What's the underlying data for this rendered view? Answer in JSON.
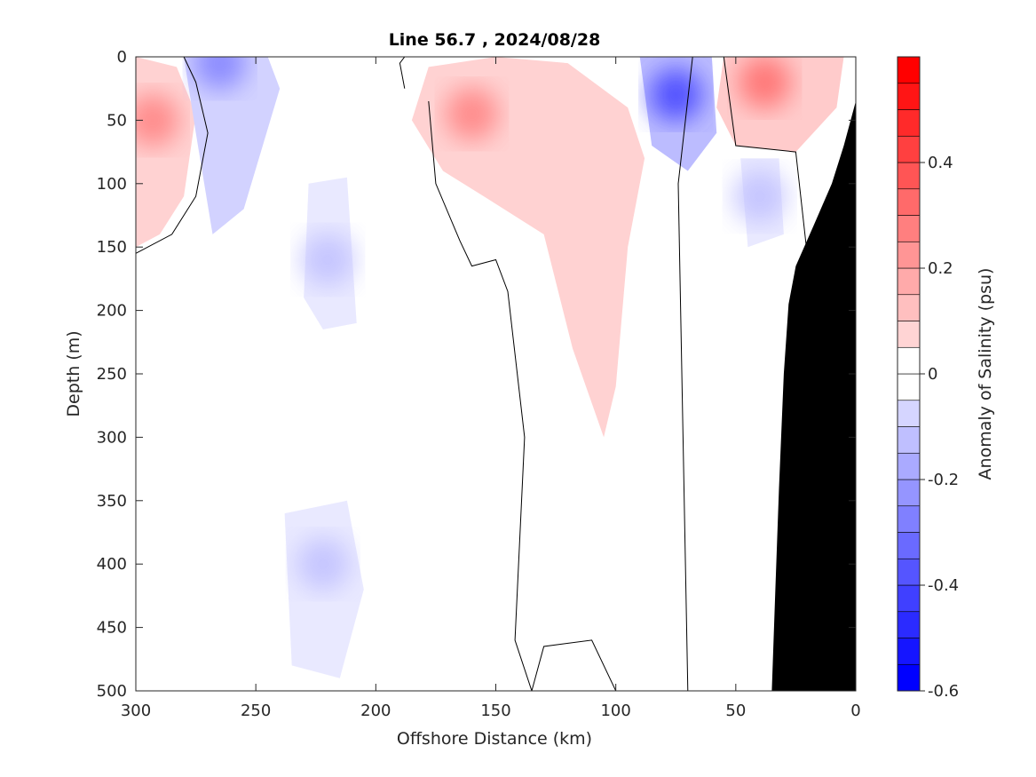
{
  "chart_data": {
    "type": "heatmap",
    "title": "Line 56.7 , 2024/08/28",
    "xlabel": "Offshore Distance (km)",
    "ylabel": "Depth (m)",
    "colorbar_label": "Anomaly of Salinity (psu)",
    "x_axis": {
      "range": [
        300,
        0
      ],
      "reversed": true,
      "ticks": [
        300,
        250,
        200,
        150,
        100,
        50,
        0
      ]
    },
    "y_axis": {
      "range": [
        0,
        500
      ],
      "reversed": true,
      "ticks": [
        0,
        50,
        100,
        150,
        200,
        250,
        300,
        350,
        400,
        450,
        500
      ]
    },
    "colorbar": {
      "range": [
        -0.6,
        0.6
      ],
      "step": 0.05,
      "ticks": [
        -0.6,
        -0.4,
        -0.2,
        0,
        0.2,
        0.4
      ],
      "tick_labels": [
        "-0.6",
        "-0.4",
        "-0.2",
        "0",
        "0.2",
        "0.4"
      ],
      "negative_color": "#0000ff",
      "positive_color": "#ff0000",
      "neutral_color": "#ffffff"
    },
    "bathymetry": {
      "color": "#000000",
      "profile": [
        [
          0,
          35
        ],
        [
          5,
          70
        ],
        [
          10,
          100
        ],
        [
          18,
          135
        ],
        [
          25,
          165
        ],
        [
          28,
          195
        ],
        [
          30,
          250
        ],
        [
          32,
          340
        ],
        [
          33.5,
          420
        ],
        [
          35,
          500
        ],
        [
          0,
          500
        ]
      ]
    },
    "grid": false,
    "regions": [
      {
        "name": "salty-core-offshore-west",
        "value": 0.3,
        "center": [
          293,
          50
        ],
        "halo": [
          [
            300,
            0
          ],
          [
            283,
            8
          ],
          [
            275,
            45
          ],
          [
            280,
            110
          ],
          [
            290,
            140
          ],
          [
            300,
            150
          ]
        ]
      },
      {
        "name": "salty-core-150km",
        "value": 0.3,
        "center": [
          160,
          45
        ],
        "halo": [
          [
            178,
            8
          ],
          [
            150,
            0
          ],
          [
            120,
            5
          ],
          [
            95,
            40
          ],
          [
            88,
            80
          ],
          [
            95,
            150
          ],
          [
            100,
            260
          ],
          [
            105,
            300
          ],
          [
            118,
            230
          ],
          [
            130,
            140
          ],
          [
            155,
            110
          ],
          [
            172,
            90
          ],
          [
            185,
            50
          ]
        ]
      },
      {
        "name": "salty-core-nearshore",
        "value": 0.35,
        "center": [
          38,
          20
        ],
        "halo": [
          [
            55,
            0
          ],
          [
            5,
            0
          ],
          [
            8,
            40
          ],
          [
            25,
            75
          ],
          [
            50,
            70
          ],
          [
            58,
            40
          ]
        ]
      },
      {
        "name": "fresh-surface-265km",
        "value": -0.3,
        "center": [
          265,
          5
        ],
        "halo": [
          [
            280,
            0
          ],
          [
            245,
            0
          ],
          [
            240,
            25
          ],
          [
            255,
            120
          ],
          [
            268,
            140
          ],
          [
            275,
            60
          ]
        ]
      },
      {
        "name": "fresh-core-75km",
        "value": -0.45,
        "center": [
          75,
          30
        ],
        "halo": [
          [
            90,
            0
          ],
          [
            60,
            0
          ],
          [
            58,
            60
          ],
          [
            70,
            90
          ],
          [
            85,
            70
          ]
        ]
      },
      {
        "name": "fresh-pocket-220km",
        "value": -0.15,
        "center": [
          220,
          160
        ],
        "halo": [
          [
            228,
            100
          ],
          [
            212,
            95
          ],
          [
            208,
            210
          ],
          [
            222,
            215
          ],
          [
            230,
            190
          ]
        ]
      },
      {
        "name": "fresh-deep-225km",
        "value": -0.15,
        "center": [
          222,
          400
        ],
        "halo": [
          [
            238,
            360
          ],
          [
            212,
            350
          ],
          [
            205,
            420
          ],
          [
            215,
            490
          ],
          [
            235,
            480
          ]
        ]
      },
      {
        "name": "fresh-pocket-40km",
        "value": -0.15,
        "center": [
          40,
          110
        ],
        "halo": [
          [
            48,
            80
          ],
          [
            32,
            80
          ],
          [
            30,
            140
          ],
          [
            45,
            150
          ]
        ]
      }
    ],
    "zero_contours": [
      [
        [
          300,
          155
        ],
        [
          285,
          140
        ],
        [
          275,
          110
        ],
        [
          270,
          60
        ],
        [
          275,
          20
        ],
        [
          280,
          0
        ]
      ],
      [
        [
          188,
          25
        ],
        [
          190,
          5
        ],
        [
          188,
          0
        ]
      ],
      [
        [
          178,
          35
        ],
        [
          175,
          100
        ],
        [
          165,
          145
        ],
        [
          160,
          165
        ],
        [
          150,
          160
        ],
        [
          145,
          185
        ],
        [
          138,
          300
        ],
        [
          140,
          380
        ],
        [
          142,
          460
        ],
        [
          135,
          500
        ]
      ],
      [
        [
          135,
          500
        ],
        [
          130,
          465
        ],
        [
          110,
          460
        ],
        [
          100,
          500
        ]
      ],
      [
        [
          68,
          0
        ],
        [
          74,
          100
        ],
        [
          72,
          300
        ],
        [
          70,
          500
        ]
      ],
      [
        [
          55,
          0
        ],
        [
          50,
          70
        ],
        [
          25,
          75
        ],
        [
          20,
          160
        ]
      ]
    ]
  }
}
